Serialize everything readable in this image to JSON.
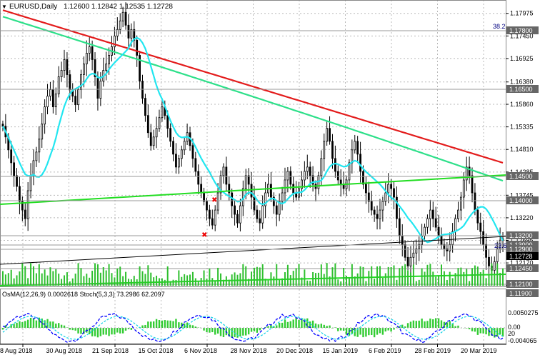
{
  "chart_title": {
    "symbol": "EURUSD,Daily",
    "ohlc": "1.12600 1.12842 1.12535 1.12728"
  },
  "indicator_title": "OsMA(12,26,9) 0.0002618  Stoch(5,3,3) 73.2986 62.2097",
  "fib_label_top": "38.2",
  "fib_label_mid": "23.6",
  "colors": {
    "ema_red": "#e31c1c",
    "ema_green": "#2ee08a",
    "ema_cyan": "#22e6f0",
    "trend_line": "#22dd22",
    "candles": "#000000",
    "osma": "#33cc33",
    "stoch_main": "#0000ff",
    "stoch_signal": "#1ad4e6",
    "level_box": "#666666"
  },
  "chart_data": {
    "type": "candlestick",
    "symbol": "EURUSD",
    "timeframe": "Daily",
    "last_bar": {
      "open": 1.126,
      "high": 1.12842,
      "low": 1.12535,
      "close": 1.12728
    },
    "ylim": [
      1.1164,
      1.1822
    ],
    "price_ticks": [
      "1.17975",
      "1.17450",
      "1.16925",
      "1.16380",
      "1.15860",
      "1.15335",
      "1.14810",
      "1.14285",
      "1.13745",
      "1.13220",
      "1.12695",
      "1.12170",
      "1.11645"
    ],
    "level_labels": [
      "1.17800",
      "1.16500",
      "1.14500",
      "1.14000",
      "1.13200",
      "1.13000",
      "1.12900",
      "1.12728",
      "1.12450",
      "1.12100",
      "1.11900"
    ],
    "date_ticks": [
      "8 Aug 2018",
      "30 Aug 2018",
      "21 Sep 2018",
      "15 Oct 2018",
      "6 Nov 2018",
      "28 Nov 2018",
      "20 Dec 2018",
      "15 Jan 2019",
      "6 Feb 2019",
      "28 Feb 2019",
      "20 Mar 2019"
    ],
    "closes": [
      1.1535,
      1.151,
      1.148,
      1.145,
      1.142,
      1.1395,
      1.136,
      1.134,
      1.132,
      1.1385,
      1.142,
      1.1455,
      1.1475,
      1.1505,
      1.154,
      1.158,
      1.1605,
      1.162,
      1.158,
      1.161,
      1.165,
      1.1665,
      1.169,
      1.1655,
      1.162,
      1.1605,
      1.1585,
      1.162,
      1.1655,
      1.168,
      1.1705,
      1.172,
      1.169,
      1.165,
      1.16,
      1.164,
      1.1665,
      1.168,
      1.17,
      1.172,
      1.1745,
      1.176,
      1.178,
      1.18,
      1.177,
      1.174,
      1.176,
      1.1735,
      1.17,
      1.164,
      1.16,
      1.156,
      1.152,
      1.149,
      1.151,
      1.153,
      1.1555,
      1.158,
      1.156,
      1.153,
      1.15,
      1.147,
      1.144,
      1.146,
      1.148,
      1.15,
      1.152,
      1.149,
      1.146,
      1.143,
      1.14,
      1.138,
      1.136,
      1.134,
      1.132,
      1.1305,
      1.134,
      1.138,
      1.142,
      1.144,
      1.14,
      1.138,
      1.135,
      1.133,
      1.131,
      1.135,
      1.139,
      1.142,
      1.14,
      1.137,
      1.134,
      1.132,
      1.131,
      1.135,
      1.138,
      1.14,
      1.137,
      1.135,
      1.133,
      1.136,
      1.138,
      1.141,
      1.143,
      1.14,
      1.138,
      1.137,
      1.139,
      1.141,
      1.143,
      1.144,
      1.142,
      1.14,
      1.139,
      1.142,
      1.146,
      1.15,
      1.153,
      1.15,
      1.146,
      1.143,
      1.141,
      1.14,
      1.139,
      1.141,
      1.145,
      1.148,
      1.15,
      1.147,
      1.143,
      1.14,
      1.138,
      1.136,
      1.134,
      1.133,
      1.132,
      1.134,
      1.136,
      1.138,
      1.14,
      1.139,
      1.137,
      1.132,
      1.128,
      1.126,
      1.123,
      1.121,
      1.123,
      1.124,
      1.125,
      1.126,
      1.128,
      1.13,
      1.132,
      1.134,
      1.132,
      1.13,
      1.128,
      1.126,
      1.125,
      1.1245,
      1.126,
      1.129,
      1.132,
      1.134,
      1.137,
      1.141,
      1.144,
      1.142,
      1.138,
      1.134,
      1.131,
      1.129,
      1.126,
      1.123,
      1.121,
      1.12,
      1.122,
      1.125,
      1.127,
      1.1273
    ]
  }
}
